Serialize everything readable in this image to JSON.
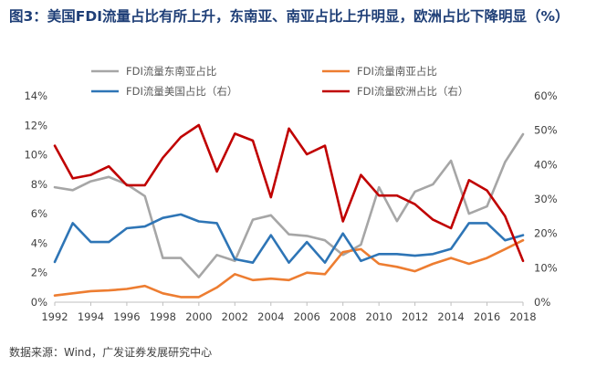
{
  "title": "图3：美国FDI流量占比有所上升，东南亚、南亚占比上升明显，欧洲占比下降明显（%）",
  "source": "数据来源：Wind，广发证券发展研究中心",
  "chart_data": {
    "type": "line",
    "x": [
      1992,
      1993,
      1994,
      1995,
      1996,
      1997,
      1998,
      1999,
      2000,
      2001,
      2002,
      2003,
      2004,
      2005,
      2006,
      2007,
      2008,
      2009,
      2010,
      2011,
      2012,
      2013,
      2014,
      2015,
      2016,
      2017,
      2018
    ],
    "x_ticks": [
      "1992",
      "1994",
      "1996",
      "1998",
      "2000",
      "2002",
      "2004",
      "2006",
      "2008",
      "2010",
      "2012",
      "2014",
      "2016",
      "2018"
    ],
    "left_axis": {
      "ylim": [
        0,
        14
      ],
      "ticks": [
        "0%",
        "2%",
        "4%",
        "6%",
        "8%",
        "10%",
        "12%",
        "14%"
      ]
    },
    "right_axis": {
      "ylim": [
        0,
        60
      ],
      "ticks": [
        "0%",
        "10%",
        "20%",
        "30%",
        "40%",
        "50%",
        "60%"
      ]
    },
    "series": [
      {
        "name": "FDI流量东南亚占比",
        "axis": "left",
        "color": "#a6a6a6",
        "values": [
          7.8,
          7.6,
          8.2,
          8.5,
          8.0,
          7.2,
          3.0,
          3.0,
          1.7,
          3.2,
          2.8,
          5.6,
          5.9,
          4.6,
          4.5,
          4.2,
          3.2,
          3.9,
          7.8,
          5.5,
          7.5,
          8.0,
          9.6,
          6.0,
          6.5,
          9.5,
          11.4
        ]
      },
      {
        "name": "FDI流量南亚占比",
        "axis": "left",
        "color": "#ed7d31",
        "values": [
          0.45,
          0.6,
          0.75,
          0.8,
          0.9,
          1.1,
          0.6,
          0.35,
          0.35,
          1.0,
          1.9,
          1.5,
          1.6,
          1.5,
          2.0,
          1.9,
          3.4,
          3.6,
          2.6,
          2.4,
          2.1,
          2.6,
          3.0,
          2.6,
          3.0,
          3.6,
          4.2
        ]
      },
      {
        "name": "FDI流量美国占比（右）",
        "axis": "right",
        "color": "#2e75b6",
        "values": [
          11.7,
          23.0,
          17.5,
          17.5,
          21.5,
          22.0,
          24.5,
          25.5,
          23.5,
          23.0,
          12.5,
          11.5,
          19.5,
          11.5,
          17.5,
          11.5,
          20.0,
          12.0,
          14.0,
          14.0,
          13.5,
          14.0,
          15.5,
          23.0,
          23.0,
          18.0,
          19.5
        ]
      },
      {
        "name": "FDI流量欧洲占比（右）",
        "axis": "right",
        "color": "#c00000",
        "values": [
          45.5,
          36.0,
          37.0,
          39.5,
          34.0,
          34.0,
          42.0,
          48.0,
          51.5,
          38.0,
          49.0,
          47.0,
          30.5,
          50.5,
          43.0,
          45.5,
          23.5,
          37.0,
          31.0,
          31.0,
          28.5,
          24.0,
          21.5,
          35.5,
          32.5,
          25.0,
          12.0
        ]
      }
    ]
  }
}
